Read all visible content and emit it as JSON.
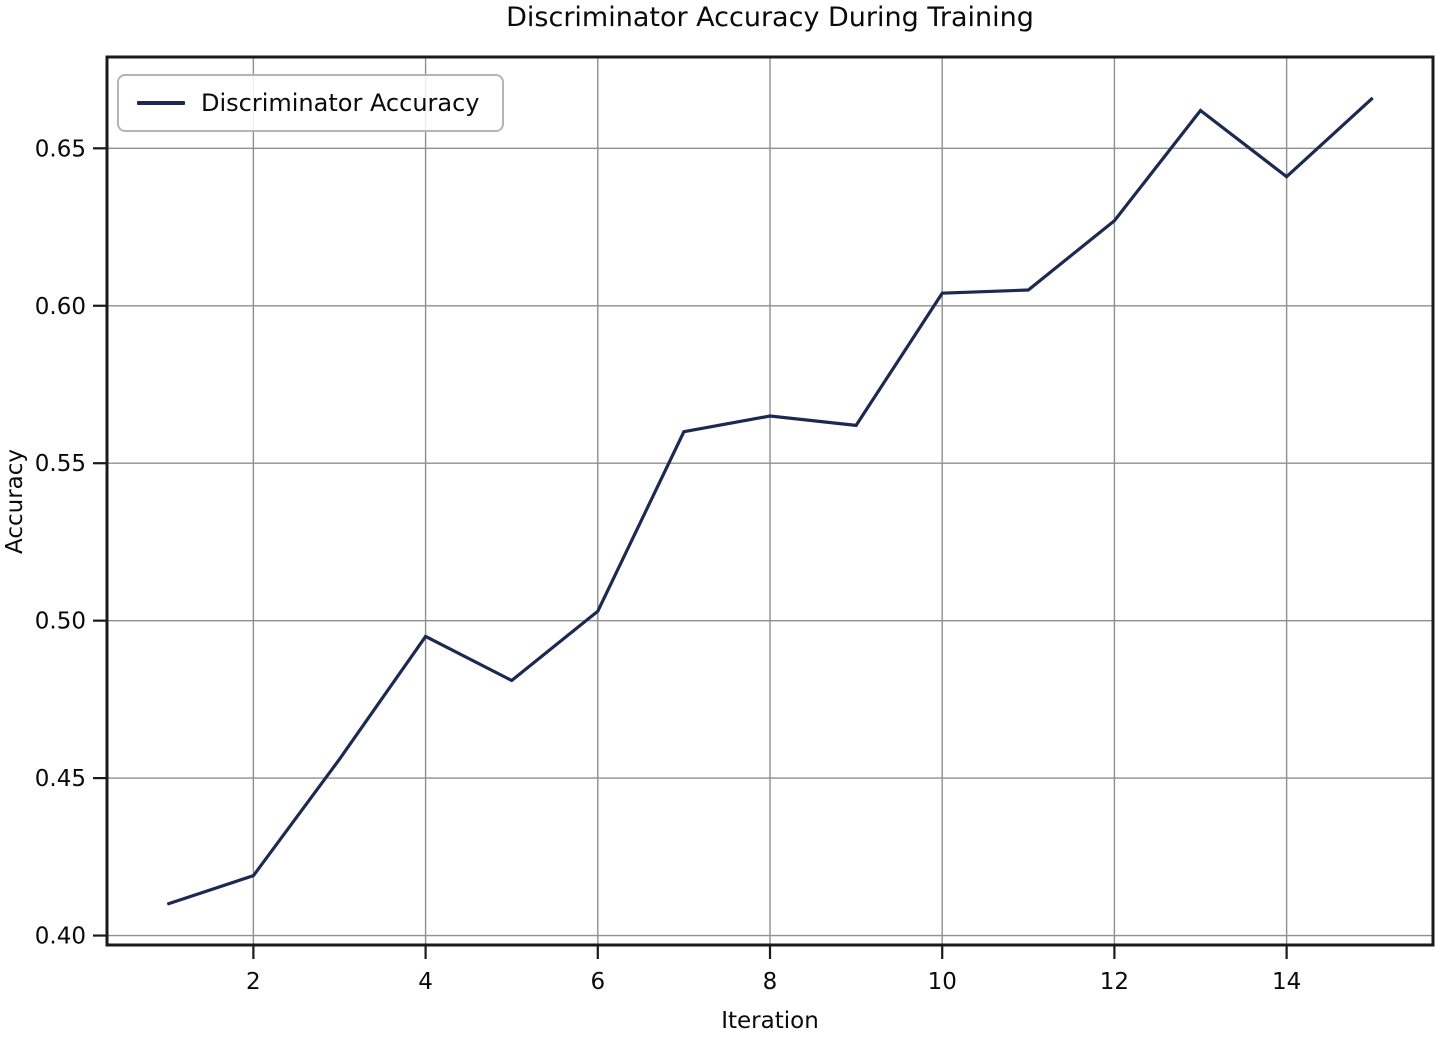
{
  "chart_data": {
    "type": "line",
    "title": "Discriminator Accuracy During Training",
    "xlabel": "Iteration",
    "ylabel": "Accuracy",
    "x": [
      1,
      2,
      3,
      4,
      5,
      6,
      7,
      8,
      9,
      10,
      11,
      12,
      13,
      14,
      15
    ],
    "series": [
      {
        "name": "Discriminator Accuracy",
        "color": "#1c2950",
        "values": [
          0.41,
          0.419,
          0.456,
          0.495,
          0.481,
          0.503,
          0.56,
          0.565,
          0.562,
          0.604,
          0.605,
          0.627,
          0.662,
          0.641,
          0.666
        ]
      }
    ],
    "xticks": [
      2,
      4,
      6,
      8,
      10,
      12,
      14
    ],
    "xticklabels": [
      "2",
      "4",
      "6",
      "8",
      "10",
      "12",
      "14"
    ],
    "yticks": [
      0.4,
      0.45,
      0.5,
      0.55,
      0.6,
      0.65
    ],
    "yticklabels": [
      "0.40",
      "0.45",
      "0.50",
      "0.55",
      "0.60",
      "0.65"
    ],
    "xlim": [
      0.3,
      15.7
    ],
    "ylim": [
      0.397,
      0.679
    ],
    "grid": true,
    "legend": {
      "label": "Discriminator Accuracy",
      "position": "upper left"
    }
  },
  "styles": {
    "line_color": "#1c2950",
    "grid_color": "#8f8f8f",
    "spine_color": "#1a1a1a",
    "text_color": "#0a0a0a",
    "background": "#ffffff"
  }
}
